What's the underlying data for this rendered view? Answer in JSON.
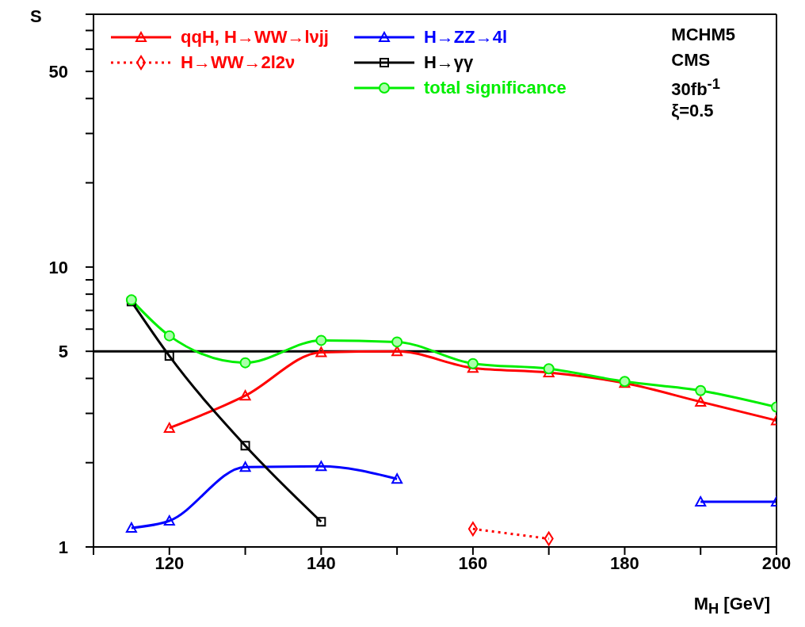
{
  "chart_data": {
    "type": "line",
    "xlabel": "M$_{H}$ [GeV]",
    "ylabel": "S",
    "log": "y",
    "legend": "top",
    "x": [
      115,
      120,
      130,
      140,
      150,
      160,
      170,
      180,
      190,
      200
    ],
    "xlim": [
      110,
      200
    ],
    "xticks": [
      {
        "value": 110,
        "label": null
      },
      120,
      {
        "value": 130,
        "label": null
      },
      140,
      {
        "value": 150,
        "label": null
      },
      160,
      {
        "value": 170,
        "label": null
      },
      180,
      {
        "value": 190,
        "label": null
      },
      200
    ],
    "ylim": [
      1,
      80
    ],
    "yticks": [
      1,
      {
        "value": 2,
        "label": null
      },
      {
        "value": 3,
        "label": null
      },
      {
        "value": 4,
        "label": null
      },
      5,
      {
        "value": 6,
        "label": null
      },
      {
        "value": 7,
        "label": null
      },
      {
        "value": 8,
        "label": null
      },
      {
        "value": 9,
        "label": null
      },
      10,
      {
        "value": 20,
        "label": null
      },
      {
        "value": 30,
        "label": null
      },
      {
        "value": 40,
        "label": null
      },
      50,
      {
        "value": 60,
        "label": null
      },
      {
        "value": 70,
        "label": null
      },
      {
        "value": 80,
        "label": null
      }
    ],
    "series": [
      {
        "name": "qqH, H→WW→lνjj",
        "color": "#ff0000",
        "marker": "triangle",
        "line_style": "solid",
        "values": [
          null,
          2.66,
          3.47,
          4.96,
          5.0,
          4.36,
          4.2,
          3.85,
          3.3,
          2.83
        ]
      },
      {
        "name": "H→WW→2l2ν",
        "color": "#ff0000",
        "marker": "diamond",
        "line_style": "dotted",
        "values": [
          null,
          null,
          null,
          null,
          null,
          1.16,
          1.07,
          null,
          null,
          null
        ]
      },
      {
        "name": "H→ZZ→4l",
        "color": "#0000ff",
        "marker": "triangle",
        "line_style": "solid",
        "values": [
          1.17,
          1.24,
          1.93,
          1.94,
          1.75,
          null,
          null,
          null,
          1.45,
          1.45
        ]
      },
      {
        "name": "H→γγ",
        "color": "#000000",
        "marker": "square",
        "line_style": "solid",
        "values": [
          7.53,
          4.81,
          2.3,
          1.23,
          null,
          null,
          null,
          null,
          null,
          null
        ]
      },
      {
        "name": "total significance",
        "color": "#00ee00",
        "marker": "circle",
        "line_style": "solid",
        "values": [
          7.63,
          5.68,
          4.55,
          5.47,
          5.4,
          4.52,
          4.33,
          3.9,
          3.62,
          3.16
        ]
      }
    ],
    "ref_lines": [
      {
        "axis": "y",
        "value": 5,
        "color": "#000000",
        "line_style": "solid"
      }
    ],
    "annotations": [
      "MCHM5",
      "CMS",
      "30fb$^{-1}$",
      "ξ=0.5"
    ]
  }
}
